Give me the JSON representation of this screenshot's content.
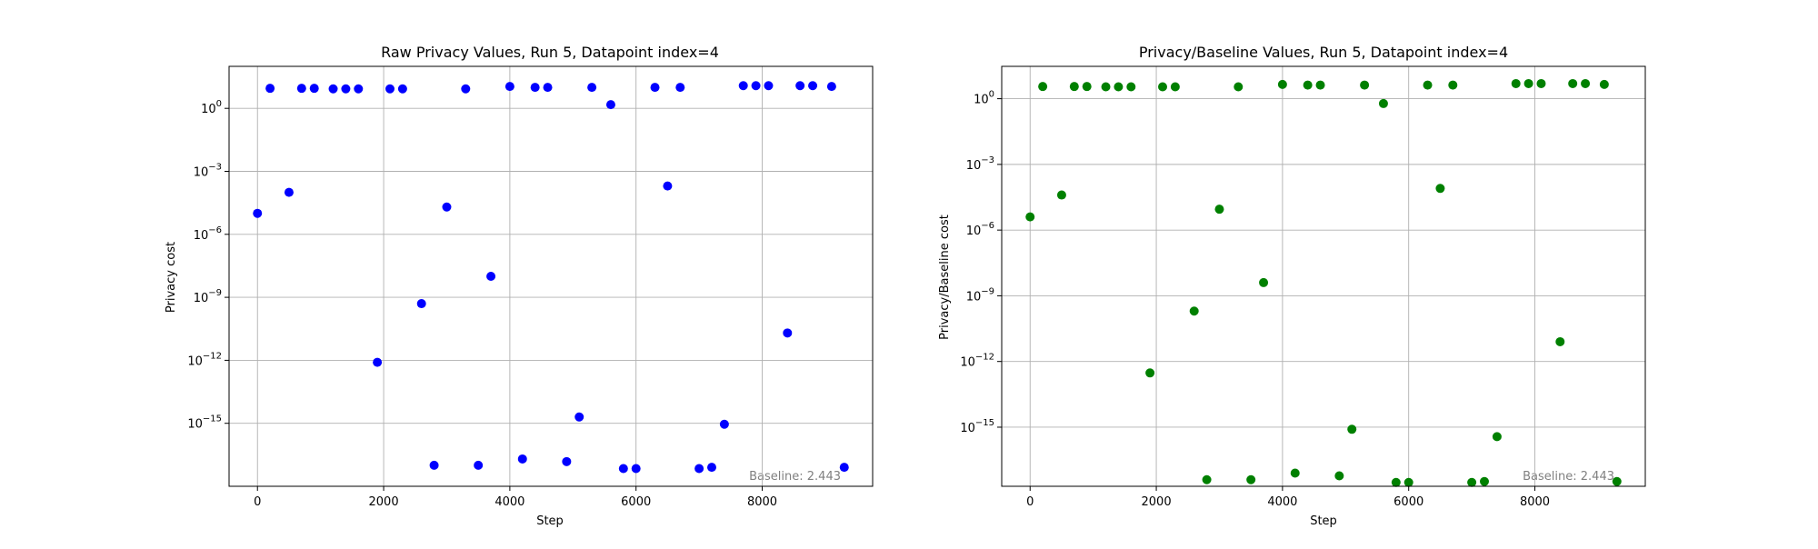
{
  "chart_data": [
    {
      "type": "scatter",
      "title": "Raw Privacy Values, Run 5, Datapoint index=4",
      "xlabel": "Step",
      "ylabel": "Privacy cost",
      "yscale": "log",
      "xlim": [
        -450,
        9750
      ],
      "ylim": [
        1e-18,
        100.0
      ],
      "xticks": [
        0,
        2000,
        4000,
        6000,
        8000
      ],
      "xtick_labels": [
        "0",
        "2000",
        "4000",
        "6000",
        "8000"
      ],
      "yticks": [
        1e-15,
        1e-12,
        1e-09,
        1e-06,
        0.001,
        1
      ],
      "ytick_labels": [
        {
          "base": "10",
          "exp": "−15"
        },
        {
          "base": "10",
          "exp": "−12"
        },
        {
          "base": "10",
          "exp": "−9"
        },
        {
          "base": "10",
          "exp": "−6"
        },
        {
          "base": "10",
          "exp": "−3"
        },
        {
          "base": "10",
          "exp": "0"
        }
      ],
      "grid": true,
      "color": "#0000ff",
      "annotation": "Baseline: 2.443",
      "points": [
        {
          "x": 0,
          "y": 1e-05
        },
        {
          "x": 200,
          "y": 9
        },
        {
          "x": 500,
          "y": 0.0001
        },
        {
          "x": 700,
          "y": 9
        },
        {
          "x": 900,
          "y": 9
        },
        {
          "x": 1200,
          "y": 8.5
        },
        {
          "x": 1400,
          "y": 8.5
        },
        {
          "x": 1600,
          "y": 8.5
        },
        {
          "x": 1900,
          "y": 8e-13
        },
        {
          "x": 2100,
          "y": 8.5
        },
        {
          "x": 2300,
          "y": 8.5
        },
        {
          "x": 2600,
          "y": 5e-10
        },
        {
          "x": 2800,
          "y": 1e-17
        },
        {
          "x": 3000,
          "y": 2e-05
        },
        {
          "x": 3300,
          "y": 8.5
        },
        {
          "x": 3500,
          "y": 1e-17
        },
        {
          "x": 3700,
          "y": 1e-08
        },
        {
          "x": 4000,
          "y": 11
        },
        {
          "x": 4200,
          "y": 2e-17
        },
        {
          "x": 4400,
          "y": 10
        },
        {
          "x": 4600,
          "y": 10
        },
        {
          "x": 4900,
          "y": 1.5e-17
        },
        {
          "x": 5100,
          "y": 2e-15
        },
        {
          "x": 5300,
          "y": 10
        },
        {
          "x": 5600,
          "y": 1.5
        },
        {
          "x": 5800,
          "y": 7e-18
        },
        {
          "x": 6000,
          "y": 7e-18
        },
        {
          "x": 6300,
          "y": 10
        },
        {
          "x": 6500,
          "y": 0.0002
        },
        {
          "x": 6700,
          "y": 10
        },
        {
          "x": 7000,
          "y": 7e-18
        },
        {
          "x": 7200,
          "y": 8e-18
        },
        {
          "x": 7400,
          "y": 9e-16
        },
        {
          "x": 7700,
          "y": 12
        },
        {
          "x": 7900,
          "y": 12
        },
        {
          "x": 8100,
          "y": 12
        },
        {
          "x": 8400,
          "y": 2e-11
        },
        {
          "x": 8600,
          "y": 12
        },
        {
          "x": 8800,
          "y": 12
        },
        {
          "x": 9100,
          "y": 11
        },
        {
          "x": 9300,
          "y": 8e-18
        }
      ]
    },
    {
      "type": "scatter",
      "title": "Privacy/Baseline Values, Run 5, Datapoint index=4",
      "xlabel": "Step",
      "ylabel": "Privacy/Baseline cost",
      "yscale": "log",
      "xlim": [
        -450,
        9750
      ],
      "ylim": [
        2e-18,
        30
      ],
      "xticks": [
        0,
        2000,
        4000,
        6000,
        8000
      ],
      "xtick_labels": [
        "0",
        "2000",
        "4000",
        "6000",
        "8000"
      ],
      "yticks": [
        1e-15,
        1e-12,
        1e-09,
        1e-06,
        0.001,
        1
      ],
      "ytick_labels": [
        {
          "base": "10",
          "exp": "−15"
        },
        {
          "base": "10",
          "exp": "−12"
        },
        {
          "base": "10",
          "exp": "−9"
        },
        {
          "base": "10",
          "exp": "−6"
        },
        {
          "base": "10",
          "exp": "−3"
        },
        {
          "base": "10",
          "exp": "0"
        }
      ],
      "grid": true,
      "color": "#008000",
      "annotation": "Baseline: 2.443",
      "points": [
        {
          "x": 0,
          "y": 4e-06
        },
        {
          "x": 200,
          "y": 3.6
        },
        {
          "x": 500,
          "y": 4e-05
        },
        {
          "x": 700,
          "y": 3.6
        },
        {
          "x": 900,
          "y": 3.6
        },
        {
          "x": 1200,
          "y": 3.5
        },
        {
          "x": 1400,
          "y": 3.5
        },
        {
          "x": 1600,
          "y": 3.5
        },
        {
          "x": 1900,
          "y": 3e-13
        },
        {
          "x": 2100,
          "y": 3.5
        },
        {
          "x": 2300,
          "y": 3.5
        },
        {
          "x": 2600,
          "y": 2e-10
        },
        {
          "x": 2800,
          "y": 4e-18
        },
        {
          "x": 3000,
          "y": 9e-06
        },
        {
          "x": 3300,
          "y": 3.5
        },
        {
          "x": 3500,
          "y": 4e-18
        },
        {
          "x": 3700,
          "y": 4e-09
        },
        {
          "x": 4000,
          "y": 4.5
        },
        {
          "x": 4200,
          "y": 8e-18
        },
        {
          "x": 4400,
          "y": 4.2
        },
        {
          "x": 4600,
          "y": 4.2
        },
        {
          "x": 4900,
          "y": 6e-18
        },
        {
          "x": 5100,
          "y": 8e-16
        },
        {
          "x": 5300,
          "y": 4.2
        },
        {
          "x": 5600,
          "y": 0.6
        },
        {
          "x": 5800,
          "y": 3e-18
        },
        {
          "x": 6000,
          "y": 3e-18
        },
        {
          "x": 6300,
          "y": 4.2
        },
        {
          "x": 6500,
          "y": 8e-05
        },
        {
          "x": 6700,
          "y": 4.2
        },
        {
          "x": 7000,
          "y": 3e-18
        },
        {
          "x": 7200,
          "y": 3.3e-18
        },
        {
          "x": 7400,
          "y": 3.7e-16
        },
        {
          "x": 7700,
          "y": 4.9
        },
        {
          "x": 7900,
          "y": 4.9
        },
        {
          "x": 8100,
          "y": 4.9
        },
        {
          "x": 8400,
          "y": 8e-12
        },
        {
          "x": 8600,
          "y": 4.9
        },
        {
          "x": 8800,
          "y": 4.9
        },
        {
          "x": 9100,
          "y": 4.5
        },
        {
          "x": 9300,
          "y": 3.3e-18
        }
      ]
    }
  ]
}
